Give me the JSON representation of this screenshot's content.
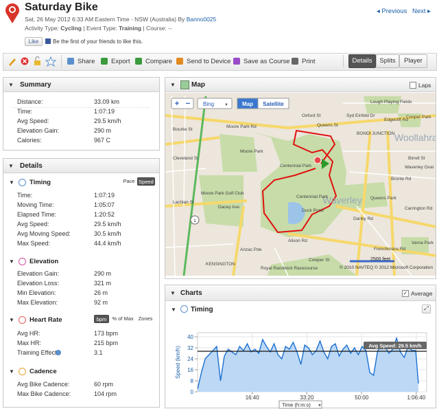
{
  "header": {
    "title": "Saturday Bike",
    "datetime": "Sat, 26 May 2012 6:33 AM Eastern Time - NSW (Australia)",
    "by": "By",
    "user": "Banno0025",
    "activity_type_label": "Activity Type:",
    "activity_type": "Cycling",
    "event_type_label": "| Event Type:",
    "event_type": "Training",
    "course_label": "| Course:",
    "course": "--",
    "like": "Like",
    "like_text": "Be the first of your friends to like this.",
    "previous": "Previous",
    "next": "Next"
  },
  "toolbar": {
    "actions": [
      "Share",
      "Export",
      "Compare",
      "Send to Device",
      "Save as Course",
      "Print"
    ],
    "tabs": [
      "Details",
      "Splits",
      "Player"
    ],
    "selected_tab": 0
  },
  "summary": {
    "title": "Summary",
    "rows": [
      [
        "Distance:",
        "33.09 km"
      ],
      [
        "Time:",
        "1:07:19"
      ],
      [
        "Avg Speed:",
        "29.5 km/h"
      ],
      [
        "Elevation Gain:",
        "290 m"
      ],
      [
        "Calories:",
        "967 C"
      ]
    ]
  },
  "details": {
    "title": "Details",
    "sections": [
      {
        "title": "Timing",
        "toggles": [
          "Pace",
          "Speed"
        ],
        "selected": 1,
        "rows": [
          [
            "Time:",
            "1:07:19"
          ],
          [
            "Moving Time:",
            "1:05:07"
          ],
          [
            "Elapsed Time:",
            "1:20:52"
          ],
          [
            "Avg Speed:",
            "29.5 km/h"
          ],
          [
            "Avg Moving Speed:",
            "30.5 km/h"
          ],
          [
            "Max Speed:",
            "44.4 km/h"
          ]
        ]
      },
      {
        "title": "Elevation",
        "rows": [
          [
            "Elevation Gain:",
            "290 m"
          ],
          [
            "Elevation Loss:",
            "321 m"
          ],
          [
            "Min Elevation:",
            "26 m"
          ],
          [
            "Max Elevation:",
            "92 m"
          ]
        ]
      },
      {
        "title": "Heart Rate",
        "toggles": [
          "bpm",
          "% of Max",
          "Zones"
        ],
        "selected": 0,
        "rows": [
          [
            "Avg HR:",
            "173 bpm"
          ],
          [
            "Max HR:",
            "215 bpm"
          ],
          [
            "Training Effect",
            "3.1"
          ]
        ]
      },
      {
        "title": "Cadence",
        "rows": [
          [
            "Avg Bike Cadence:",
            "60 rpm"
          ],
          [
            "Max Bike Cadence:",
            "104 rpm"
          ]
        ]
      }
    ]
  },
  "map": {
    "title": "Map",
    "laps": "Laps",
    "zoom_in": "+",
    "zoom_out": "−",
    "provider": "Bing",
    "modes": [
      "Map",
      "Satellite"
    ],
    "selected_mode": 0,
    "scale": "2500 feet",
    "copyright": "© 2010 NAVTEQ  © 2012 Microsoft Corporation",
    "labels": [
      "Moore Park Rd",
      "Oxford St",
      "Queens St",
      "Syd Einfeld Dr",
      "Edgecliff Rd",
      "Cooper Park",
      "Lough Playing Fields",
      "BONDI JUNCTION",
      "Woollahra",
      "Centennial Park",
      "Moore Park",
      "Moore Park Golf Club",
      "Dacey Ave",
      "Lachlan St",
      "Waverley",
      "Queens Park",
      "Duck Pond",
      "Anzac Pde",
      "KENSINGTON",
      "Royal Randwick Racecourse",
      "Frenchmans Rd",
      "Darley Rd",
      "Cowper St",
      "Carrington Rd",
      "Bronte Rd",
      "Birrell St",
      "Varna Park",
      "Waverley Oval",
      "Alison Rd",
      "Cleveland St",
      "Bourke St",
      "Centennial Park"
    ]
  },
  "charts": {
    "title": "Charts",
    "average": "Average",
    "subtitle": "Timing"
  },
  "chart_data": {
    "type": "line",
    "y_label": "Speed (km/h)",
    "x_label": "Time (h:m:s)",
    "color": "#1a6fd1",
    "fill": "#bcd8f5",
    "x": [
      0,
      70,
      140,
      210,
      280,
      350,
      420,
      490,
      560,
      630,
      700,
      770,
      840,
      910,
      980,
      1050,
      1120,
      1190,
      1260,
      1330,
      1400,
      1470,
      1540,
      1610,
      1680,
      1750,
      1820,
      1890,
      1960,
      2030,
      2100,
      2170,
      2240,
      2310,
      2380,
      2450,
      2520,
      2590,
      2660,
      2730,
      2800,
      2870,
      2940,
      3010,
      3080,
      3150,
      3220,
      3290,
      3360,
      3430,
      3500,
      3570,
      3640,
      3710,
      3780,
      3850,
      3920,
      3990,
      4039
    ],
    "values": [
      2,
      14,
      24,
      27,
      30,
      33,
      8,
      26,
      31,
      29,
      27,
      33,
      30,
      35,
      29,
      31,
      28,
      38,
      33,
      29,
      35,
      27,
      24,
      33,
      31,
      36,
      29,
      20,
      34,
      32,
      27,
      30,
      37,
      29,
      24,
      33,
      35,
      26,
      31,
      34,
      28,
      32,
      27,
      33,
      30,
      14,
      12,
      29,
      35,
      33,
      28,
      31,
      39,
      29,
      25,
      33,
      30,
      30,
      6
    ],
    "average": 29.5,
    "average_label": "Avg Speed: 29.5 km/h",
    "xlim": [
      0,
      4190
    ],
    "ylim": [
      0,
      43
    ],
    "xticks": [
      {
        "value": 1000,
        "label": "16:40"
      },
      {
        "value": 2000,
        "label": "33:20"
      },
      {
        "value": 3000,
        "label": "50:00"
      },
      {
        "value": 4000,
        "label": "1:06:40"
      }
    ],
    "yticks": [
      0,
      8,
      16,
      24,
      32,
      40
    ],
    "grid": true
  }
}
